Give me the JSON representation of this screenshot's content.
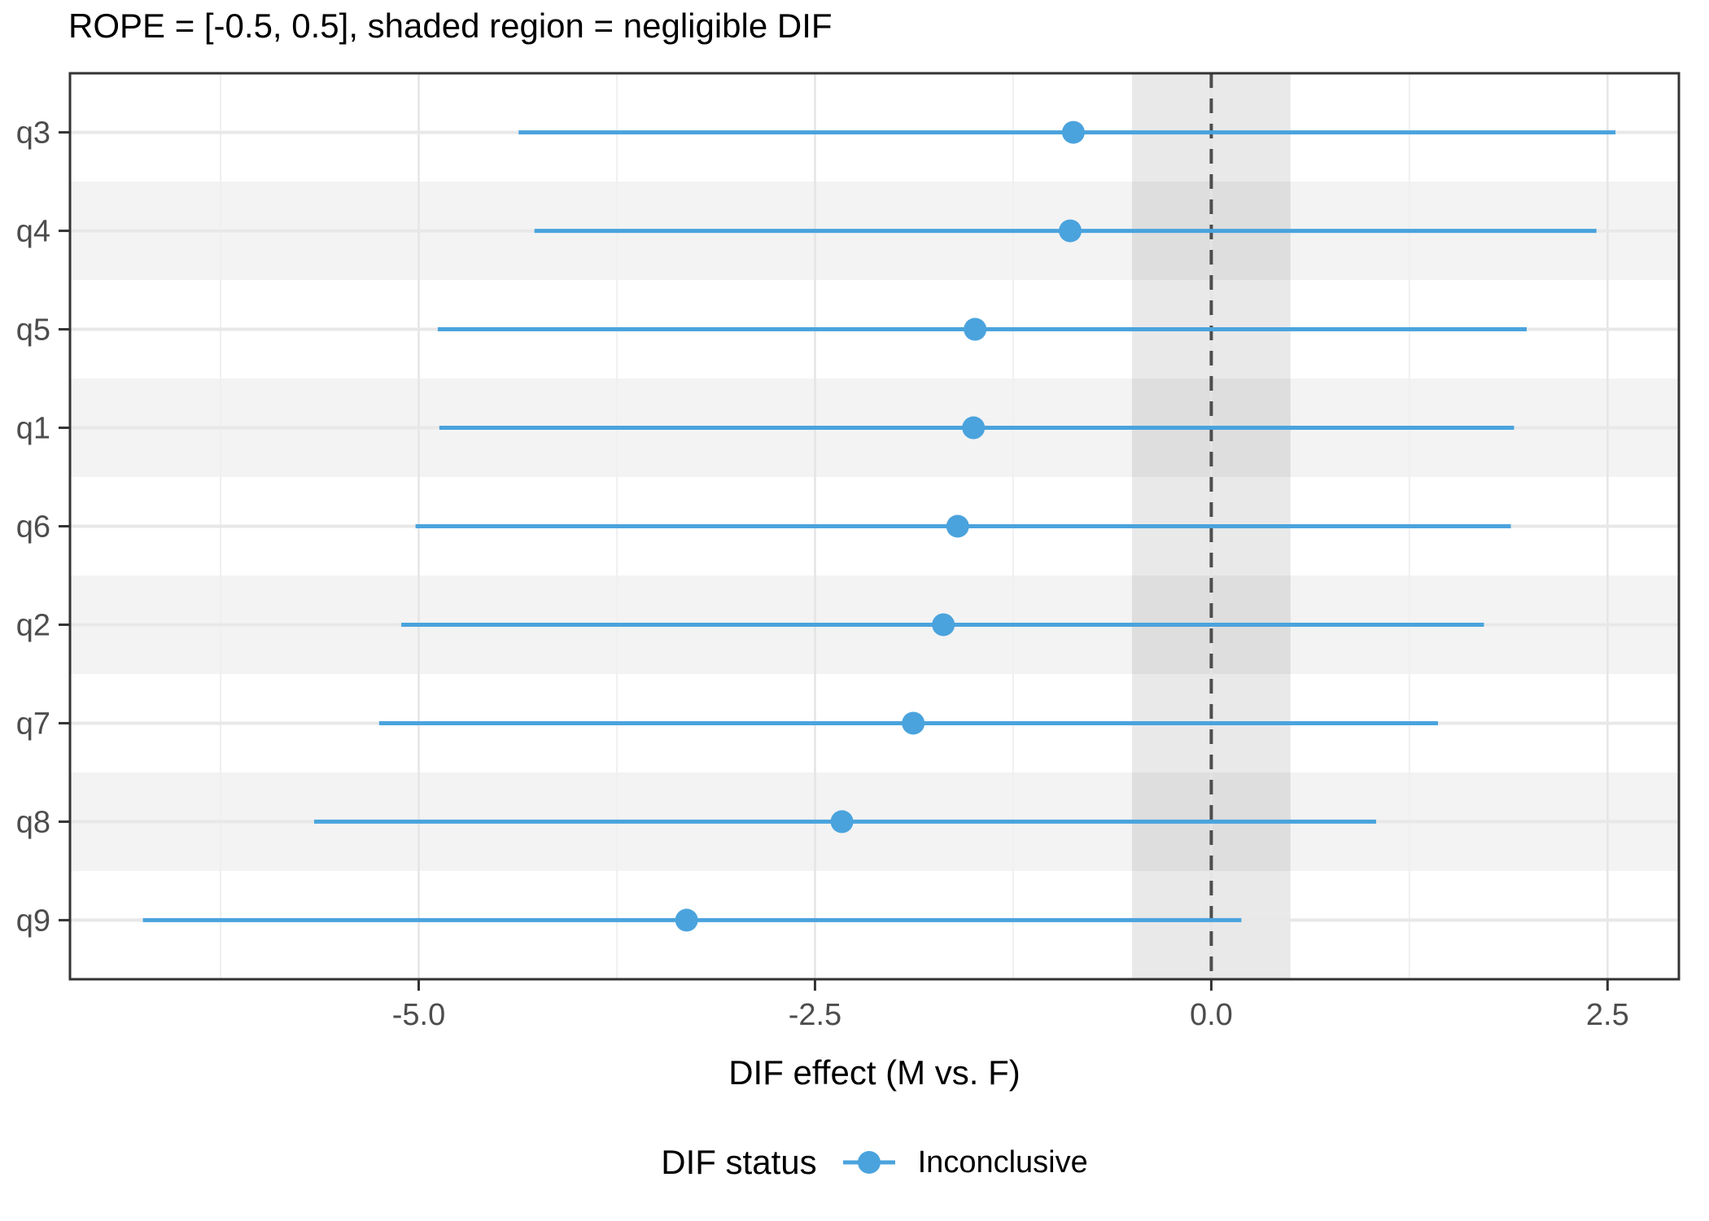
{
  "plot": {
    "title": "ROPE = [-0.5, 0.5], shaded region = negligible DIF",
    "x_axis_title": "DIF effect (M vs. F)"
  },
  "legend": {
    "title": "DIF status",
    "items": [
      {
        "label": "Inconclusive",
        "color": "#4AA3DD",
        "glyph": "point-with-line"
      }
    ]
  },
  "chart_data": {
    "type": "scatter",
    "subtype": "forest-plot-dot-with-interval",
    "title": "ROPE = [-0.5, 0.5], shaded region = negligible DIF",
    "xlabel": "DIF effect (M vs. F)",
    "ylabel": "",
    "categories_top_to_bottom": [
      "q3",
      "q4",
      "q5",
      "q1",
      "q6",
      "q2",
      "q7",
      "q8",
      "q9"
    ],
    "items": [
      {
        "item": "q3",
        "estimate": -0.87,
        "lower": -4.37,
        "upper": 2.55,
        "status": "Inconclusive"
      },
      {
        "item": "q4",
        "estimate": -0.89,
        "lower": -4.27,
        "upper": 2.43,
        "status": "Inconclusive"
      },
      {
        "item": "q5",
        "estimate": -1.49,
        "lower": -4.88,
        "upper": 1.99,
        "status": "Inconclusive"
      },
      {
        "item": "q1",
        "estimate": -1.5,
        "lower": -4.87,
        "upper": 1.91,
        "status": "Inconclusive"
      },
      {
        "item": "q6",
        "estimate": -1.6,
        "lower": -5.02,
        "upper": 1.89,
        "status": "Inconclusive"
      },
      {
        "item": "q2",
        "estimate": -1.69,
        "lower": -5.11,
        "upper": 1.72,
        "status": "Inconclusive"
      },
      {
        "item": "q7",
        "estimate": -1.88,
        "lower": -5.25,
        "upper": 1.43,
        "status": "Inconclusive"
      },
      {
        "item": "q8",
        "estimate": -2.33,
        "lower": -5.66,
        "upper": 1.04,
        "status": "Inconclusive"
      },
      {
        "item": "q9",
        "estimate": -3.31,
        "lower": -6.74,
        "upper": 0.19,
        "status": "Inconclusive"
      }
    ],
    "rope": {
      "min": -0.5,
      "max": 0.5
    },
    "zero_line": 0,
    "x_ticks": [
      -5.0,
      -2.5,
      0.0,
      2.5
    ],
    "x_tick_labels": [
      "-5.0",
      "-2.5",
      "0.0",
      "2.5"
    ],
    "x_minor_ticks": [
      -6.25,
      -3.75,
      -1.25,
      1.25
    ],
    "xlim": [
      -7.2,
      2.95
    ],
    "grid": true,
    "striped_rows": [
      "q4",
      "q1",
      "q2",
      "q8"
    ],
    "legend_position": "bottom"
  },
  "colors": {
    "point_line": "#4AA3DD",
    "rope_band": "rgba(0,0,0,0.085)",
    "row_stripe": "#F3F3F3",
    "grid_major_v": "#E5E5E5",
    "grid_minor_v": "#F0F0F0",
    "grid_row": "#E8E8E8",
    "zero_line": "#4D4D4D",
    "panel_border": "#333333",
    "tick_text": "#4D4D4D",
    "text": "#000000"
  }
}
